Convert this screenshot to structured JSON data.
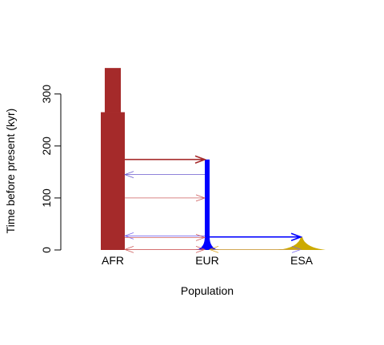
{
  "chart_data": {
    "type": "demographic-model",
    "title": "",
    "xlabel": "Population",
    "ylabel": "Time before present (kyr)",
    "ylim": [
      0,
      355
    ],
    "yticks": [
      0,
      100,
      200,
      300
    ],
    "grid": false,
    "populations": [
      {
        "name": "AFR",
        "color": "#A52A2A",
        "segments": [
          {
            "from_kyr": 0,
            "to_kyr": 265,
            "relative_width": 1.0
          },
          {
            "from_kyr": 265,
            "to_kyr": 350,
            "relative_width": 0.67
          }
        ]
      },
      {
        "name": "EUR",
        "color": "#0000FF",
        "split_from": "AFR",
        "split_time_kyr": 174,
        "bottleneck_width": 0.2,
        "growth_start_kyr": 25,
        "present_relative_width": 1.0
      },
      {
        "name": "ESA",
        "color": "#CCAA00",
        "split_from": "EUR",
        "split_time_kyr": 25,
        "present_relative_width": 2.0
      }
    ],
    "split_arrows": [
      {
        "from": "AFR",
        "to": "EUR",
        "time_kyr": 174,
        "color": "#A52A2A"
      },
      {
        "from": "EUR",
        "to": "ESA",
        "time_kyr": 25,
        "color": "#0000FF"
      }
    ],
    "migration_arrows": [
      {
        "from": "EUR",
        "to": "AFR",
        "time_kyr": 145,
        "color": "#6A5ACD"
      },
      {
        "from": "AFR",
        "to": "EUR",
        "time_kyr": 100,
        "color": "#CD5C5C"
      },
      {
        "from": "EUR",
        "to": "AFR",
        "time_kyr": 27,
        "color": "#7B68EE"
      },
      {
        "from": "AFR",
        "to": "EUR",
        "time_kyr": 24,
        "color": "#CD5C5C"
      },
      {
        "from": "EUR",
        "to": "AFR",
        "time_kyr": 1,
        "color": "#CD5C5C"
      },
      {
        "from": "AFR",
        "to": "EUR",
        "time_kyr": 1,
        "color": "#CD5C5C"
      },
      {
        "from": "EUR",
        "to": "ESA",
        "time_kyr": 1,
        "color": "#7B68EE"
      },
      {
        "from": "ESA",
        "to": "EUR",
        "time_kyr": 1,
        "color": "#DAA520"
      }
    ]
  }
}
